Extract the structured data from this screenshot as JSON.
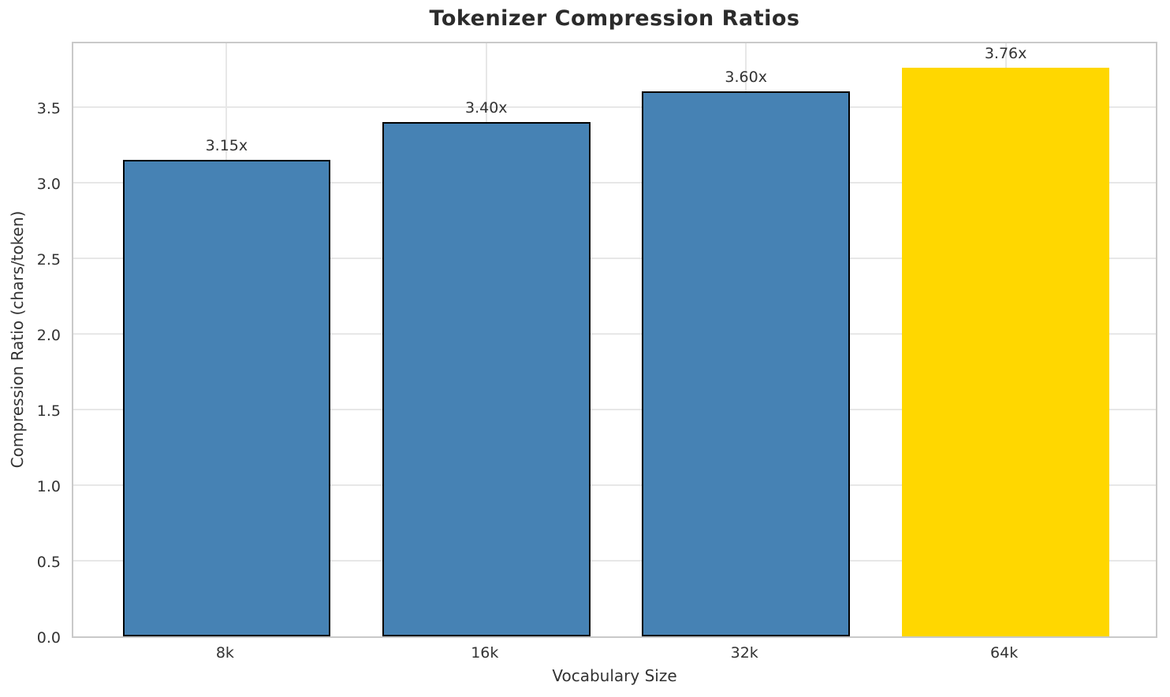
{
  "page": {
    "background": "#ffffff"
  },
  "chart_data": {
    "type": "bar",
    "title": "Tokenizer Compression Ratios",
    "xlabel": "Vocabulary Size",
    "ylabel": "Compression Ratio (chars/token)",
    "categories": [
      "8k",
      "16k",
      "32k",
      "64k"
    ],
    "values": [
      3.15,
      3.4,
      3.6,
      3.76
    ],
    "bar_labels": [
      "3.15x",
      "3.40x",
      "3.60x",
      "3.76x"
    ],
    "bar_colors": [
      "#4682B4",
      "#4682B4",
      "#4682B4",
      "#FFD700"
    ],
    "bar_edge_colors": [
      "#000000",
      "#000000",
      "#000000",
      "none"
    ],
    "highlighted_category": "64k",
    "ylim": [
      0,
      3.94
    ],
    "yticks": [
      "0.0",
      "0.5",
      "1.0",
      "1.5",
      "2.0",
      "2.5",
      "3.0",
      "3.5"
    ],
    "grid": "both",
    "legend": "none",
    "colors": {
      "grid": "#e7e7e7",
      "spine": "#c9c9c9",
      "tick_text": "#333333",
      "title_text": "#2b2b2b"
    }
  }
}
